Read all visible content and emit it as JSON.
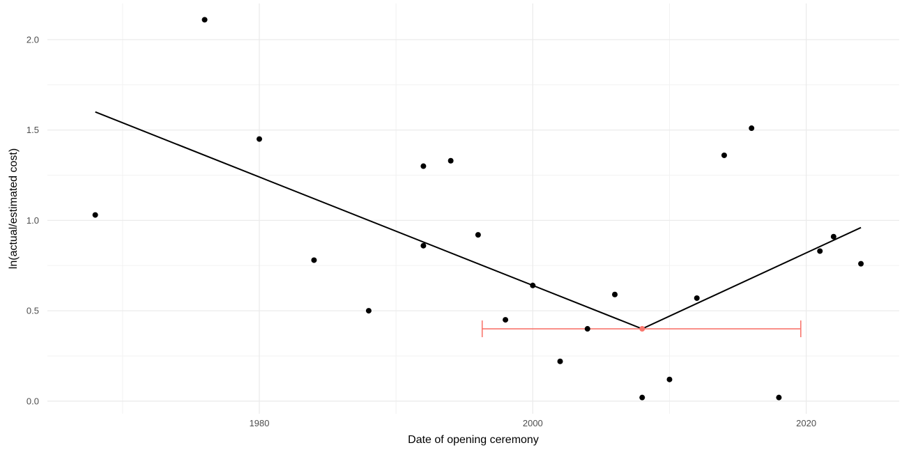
{
  "chart_data": {
    "type": "scatter",
    "title": "",
    "xlabel": "Date of opening ceremony",
    "ylabel": "ln(actual/estimated cost)",
    "xlim": [
      1964.5,
      2026.8
    ],
    "ylim": [
      -0.07,
      2.2
    ],
    "grid": true,
    "x_ticks": [
      1980,
      2000,
      2020
    ],
    "x_tick_labels": [
      "1980",
      "2000",
      "2020"
    ],
    "x_minor_ticks": [
      1970,
      1990,
      2010
    ],
    "y_ticks": [
      0.0,
      0.5,
      1.0,
      1.5,
      2.0
    ],
    "y_tick_labels": [
      "0.0",
      "0.5",
      "1.0",
      "1.5",
      "2.0"
    ],
    "y_minor_ticks": [
      0.25,
      0.75,
      1.25,
      1.75
    ],
    "points": [
      {
        "x": 1968,
        "y": 1.03
      },
      {
        "x": 1976,
        "y": 2.11
      },
      {
        "x": 1980,
        "y": 1.45
      },
      {
        "x": 1984,
        "y": 0.78
      },
      {
        "x": 1988,
        "y": 0.5
      },
      {
        "x": 1992,
        "y": 1.3
      },
      {
        "x": 1992,
        "y": 0.86
      },
      {
        "x": 1994,
        "y": 1.33
      },
      {
        "x": 1996,
        "y": 0.92
      },
      {
        "x": 1998,
        "y": 0.45
      },
      {
        "x": 2000,
        "y": 0.64
      },
      {
        "x": 2002,
        "y": 0.22
      },
      {
        "x": 2004,
        "y": 0.4
      },
      {
        "x": 2006,
        "y": 0.59
      },
      {
        "x": 2008,
        "y": 0.02
      },
      {
        "x": 2010,
        "y": 0.12
      },
      {
        "x": 2012,
        "y": 0.57
      },
      {
        "x": 2014,
        "y": 1.36
      },
      {
        "x": 2016,
        "y": 1.51
      },
      {
        "x": 2018,
        "y": 0.02
      },
      {
        "x": 2021,
        "y": 0.83
      },
      {
        "x": 2022,
        "y": 0.91
      },
      {
        "x": 2024,
        "y": 0.76
      }
    ],
    "fit_line": {
      "color": "#000000",
      "points": [
        {
          "x": 1968,
          "y": 1.6
        },
        {
          "x": 2008,
          "y": 0.4
        },
        {
          "x": 2024,
          "y": 0.96
        }
      ]
    },
    "breakpoint": {
      "color": "#F8766D",
      "x": 2008,
      "y": 0.4,
      "x_low": 1996.3,
      "x_high": 2019.6
    }
  }
}
